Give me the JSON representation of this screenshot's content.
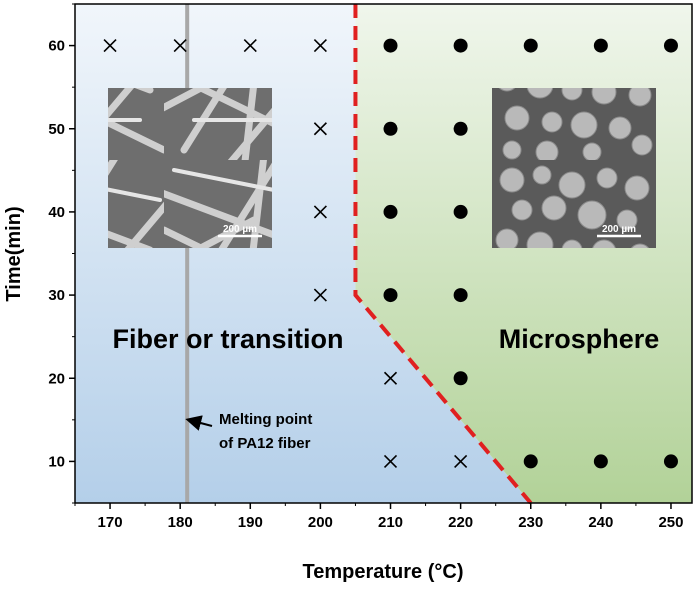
{
  "chart_data": {
    "type": "scatter",
    "title": "",
    "xlabel": "Temperature (°C)",
    "ylabel": "Time(min)",
    "xlim": [
      165,
      253
    ],
    "ylim": [
      5,
      65
    ],
    "x_ticks": [
      170,
      180,
      190,
      200,
      210,
      220,
      230,
      240,
      250
    ],
    "y_ticks": [
      10,
      20,
      30,
      40,
      50,
      60
    ],
    "grid": false,
    "series": [
      {
        "marker": "x",
        "points": [
          [
            170,
            60
          ],
          [
            180,
            60
          ],
          [
            190,
            60
          ],
          [
            200,
            60
          ],
          [
            200,
            50
          ],
          [
            200,
            40
          ],
          [
            200,
            30
          ],
          [
            210,
            20
          ],
          [
            210,
            10
          ],
          [
            220,
            10
          ]
        ]
      },
      {
        "marker": "filled-circle",
        "points": [
          [
            210,
            60
          ],
          [
            220,
            60
          ],
          [
            230,
            60
          ],
          [
            240,
            60
          ],
          [
            250,
            60
          ],
          [
            210,
            50
          ],
          [
            220,
            50
          ],
          [
            210,
            40
          ],
          [
            220,
            40
          ],
          [
            210,
            30
          ],
          [
            220,
            30
          ],
          [
            220,
            20
          ],
          [
            230,
            10
          ],
          [
            240,
            10
          ],
          [
            250,
            10
          ]
        ]
      }
    ],
    "boundary": [
      [
        205,
        65
      ],
      [
        205,
        30
      ],
      [
        230,
        5
      ]
    ],
    "melting_point_temperature": 181,
    "regions": [
      {
        "label": "Fiber or transition",
        "color": "#b4cfe9"
      },
      {
        "label": "Microsphere",
        "color": "#b2d298"
      }
    ],
    "annotations": {
      "melting_point_line1": "Melting point",
      "melting_point_line2": "of PA12 fiber"
    },
    "insets": [
      {
        "scale_bar": "200 µm"
      },
      {
        "scale_bar": "200 µm"
      }
    ],
    "colors": {
      "boundary": "#e02020",
      "melting_line": "#a8a8a8",
      "marker": "#000000"
    }
  }
}
